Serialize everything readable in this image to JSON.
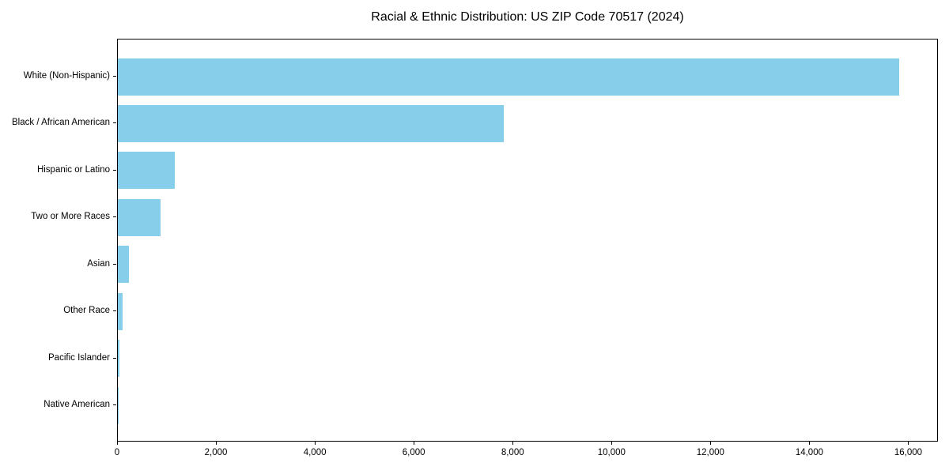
{
  "chart_data": {
    "type": "bar",
    "orientation": "horizontal",
    "title": "Racial & Ethnic Distribution: US ZIP Code 70517 (2024)",
    "categories": [
      "White (Non-Hispanic)",
      "Black / African American",
      "Hispanic or Latino",
      "Two or More Races",
      "Asian",
      "Other Race",
      "Pacific Islander",
      "Native American"
    ],
    "values": [
      15800,
      7800,
      1150,
      870,
      220,
      90,
      30,
      5
    ],
    "xlabel": "",
    "ylabel": "",
    "xlim": [
      0,
      16600
    ],
    "x_ticks": [
      0,
      2000,
      4000,
      6000,
      8000,
      10000,
      12000,
      14000,
      16000
    ],
    "x_tick_labels": [
      "0",
      "2,000",
      "4,000",
      "6,000",
      "8,000",
      "10,000",
      "12,000",
      "14,000",
      "16,000"
    ],
    "bar_color": "#87CEEB",
    "axis_color": "#000000",
    "background_color": "#ffffff",
    "grid": false,
    "legend": "none"
  }
}
